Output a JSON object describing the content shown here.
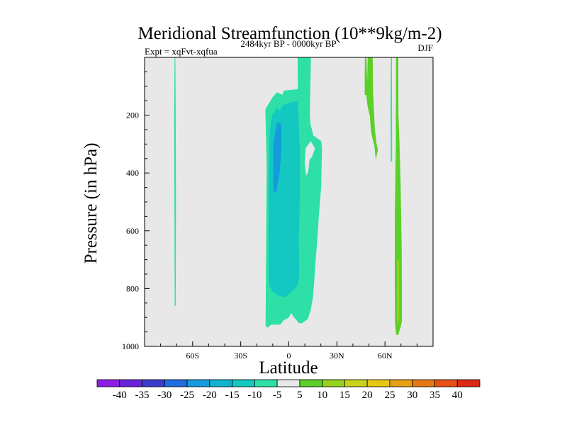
{
  "chart_data": {
    "type": "contour",
    "title": "Meridional Streamfunction (10**9kg/m-2)",
    "left_label": "Expt = xqFvt-xqfua",
    "center_label": "2484kyr BP - 0000kyr BP",
    "right_label": "DJF",
    "xlabel": "Latitude",
    "ylabel": "Pressure (in hPa)",
    "xlim": [
      -90,
      90
    ],
    "ylim": [
      0,
      1000
    ],
    "y_inverted": true,
    "x_ticks": [
      {
        "value": -60,
        "label": "60S"
      },
      {
        "value": -30,
        "label": "30S"
      },
      {
        "value": 0,
        "label": "0"
      },
      {
        "value": 30,
        "label": "30N"
      },
      {
        "value": 60,
        "label": "60N"
      }
    ],
    "y_ticks": [
      {
        "value": 200,
        "label": "200"
      },
      {
        "value": 400,
        "label": "400"
      },
      {
        "value": 600,
        "label": "600"
      },
      {
        "value": 800,
        "label": "800"
      },
      {
        "value": 1000,
        "label": "1000"
      }
    ],
    "background_color": "#e8e8e8",
    "colorbar": {
      "labels": [
        "-40",
        "-35",
        "-30",
        "-25",
        "-20",
        "-15",
        "-10",
        "-5",
        "5",
        "10",
        "15",
        "20",
        "25",
        "30",
        "35",
        "40"
      ],
      "colors": [
        "#8c1ee6",
        "#6a22d8",
        "#3c3ccf",
        "#1e6ee0",
        "#149bdc",
        "#0fb4cc",
        "#12c8c0",
        "#2ee0a8",
        "#e8e8e8",
        "#5ad028",
        "#96d21e",
        "#c8d21a",
        "#e6c814",
        "#e6a014",
        "#e67814",
        "#e65014",
        "#dc2814"
      ]
    },
    "regions": [
      {
        "name": "cell-65s-light",
        "color": "#2ee0a8",
        "points": [
          [
            -71.3,
            0
          ],
          [
            -70.8,
            0
          ],
          [
            -70.6,
            200
          ],
          [
            -70.4,
            500
          ],
          [
            -70.6,
            860
          ],
          [
            -71.2,
            860
          ],
          [
            -71.4,
            500
          ],
          [
            -71.5,
            200
          ]
        ]
      },
      {
        "name": "cell-eq-light",
        "color": "#2ee0a8",
        "points": [
          [
            -14.5,
            930
          ],
          [
            -13.8,
            370
          ],
          [
            -14.7,
            180
          ],
          [
            -10.4,
            140
          ],
          [
            -7.4,
            120
          ],
          [
            -4,
            130
          ],
          [
            -3.2,
            115
          ],
          [
            5.6,
            110
          ],
          [
            5.5,
            0
          ],
          [
            13.8,
            0
          ],
          [
            13.1,
            200
          ],
          [
            13.5,
            230
          ],
          [
            15.3,
            270
          ],
          [
            20.2,
            290
          ],
          [
            20.7,
            315
          ],
          [
            20.2,
            445
          ],
          [
            18.8,
            545
          ],
          [
            17.8,
            630
          ],
          [
            16.5,
            720
          ],
          [
            15.8,
            780
          ],
          [
            15.1,
            830
          ],
          [
            13.6,
            875
          ],
          [
            11.9,
            905
          ],
          [
            8.3,
            920
          ],
          [
            6.4,
            920
          ],
          [
            3.3,
            900
          ],
          [
            1.5,
            885
          ],
          [
            0,
            900
          ],
          [
            -3.2,
            910
          ],
          [
            -5.3,
            925
          ],
          [
            -7.9,
            925
          ],
          [
            -11.1,
            925
          ],
          [
            -13.1,
            935
          ]
        ]
      },
      {
        "name": "cell-eq-medium",
        "color": "#12c8c0",
        "points": [
          [
            -12.6,
            750
          ],
          [
            -12.6,
            420
          ],
          [
            -11.8,
            250
          ],
          [
            -10.4,
            200
          ],
          [
            -7.4,
            175
          ],
          [
            -5.8,
            185
          ],
          [
            -3.8,
            165
          ],
          [
            5.6,
            150
          ],
          [
            6.9,
            320
          ],
          [
            6.8,
            500
          ],
          [
            6.3,
            630
          ],
          [
            6.5,
            760
          ],
          [
            5.3,
            790
          ],
          [
            1.9,
            810
          ],
          [
            -2.3,
            830
          ],
          [
            -6.6,
            825
          ],
          [
            -10.1,
            810
          ],
          [
            -12.2,
            790
          ]
        ]
      },
      {
        "name": "cell-eq-dark",
        "color": "#149bdc",
        "points": [
          [
            -9.7,
            460
          ],
          [
            -9.6,
            300
          ],
          [
            -7.3,
            225
          ],
          [
            -4.8,
            230
          ],
          [
            -4.6,
            320
          ],
          [
            -5.8,
            400
          ],
          [
            -7.9,
            470
          ]
        ]
      },
      {
        "name": "notch-gap",
        "color": "#e8e8e8",
        "points": [
          [
            10.5,
            315
          ],
          [
            13.7,
            290
          ],
          [
            16.3,
            315
          ],
          [
            14.4,
            345
          ],
          [
            12.9,
            355
          ],
          [
            12.1,
            395
          ],
          [
            10.8,
            410
          ],
          [
            9.9,
            365
          ]
        ]
      },
      {
        "name": "cell-55n-green",
        "color": "#5ad028",
        "points": [
          [
            47.5,
            0
          ],
          [
            48.4,
            0
          ],
          [
            48.9,
            80
          ],
          [
            49.2,
            0
          ],
          [
            52.3,
            0
          ],
          [
            52.6,
            120
          ],
          [
            53.7,
            250
          ],
          [
            54.8,
            300
          ],
          [
            55.6,
            320
          ],
          [
            54.2,
            355
          ],
          [
            53.5,
            310
          ],
          [
            51.4,
            260
          ],
          [
            50.5,
            200
          ],
          [
            49.2,
            170
          ],
          [
            48.3,
            130
          ],
          [
            47.4,
            130
          ],
          [
            47.3,
            80
          ]
        ]
      },
      {
        "name": "cell-60n-light",
        "color": "#2ee0a8",
        "points": [
          [
            63.7,
            0
          ],
          [
            64.3,
            0
          ],
          [
            64.4,
            180
          ],
          [
            64.5,
            360
          ],
          [
            63.6,
            360
          ],
          [
            63.5,
            180
          ]
        ]
      },
      {
        "name": "cell-65n-green",
        "color": "#5ad028",
        "points": [
          [
            67.4,
            0
          ],
          [
            68.3,
            0
          ],
          [
            68.4,
            200
          ],
          [
            69.1,
            300
          ],
          [
            69.8,
            450
          ],
          [
            70.4,
            650
          ],
          [
            70.6,
            840
          ],
          [
            70.6,
            910
          ],
          [
            69.9,
            930
          ],
          [
            68.3,
            960
          ],
          [
            66.9,
            960
          ],
          [
            66.3,
            920
          ],
          [
            66.1,
            760
          ],
          [
            66.1,
            560
          ],
          [
            66.8,
            300
          ],
          [
            66.8,
            200
          ],
          [
            66.9,
            0
          ]
        ]
      },
      {
        "name": "cell-65n-yellowgreen",
        "color": "#96d21e",
        "points": [
          [
            67.5,
            700
          ],
          [
            68.8,
            700
          ],
          [
            68.9,
            760
          ],
          [
            68.9,
            900
          ],
          [
            68.2,
            930
          ],
          [
            67.5,
            900
          ]
        ]
      }
    ]
  }
}
